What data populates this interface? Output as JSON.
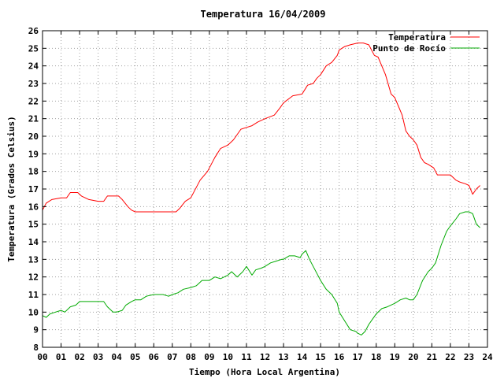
{
  "chart_data": {
    "type": "line",
    "title": "Temperatura 16/04/2009",
    "xlabel": "Tiempo (Hora Local Argentina)",
    "ylabel": "Temperatura (Grados Celsius)",
    "xlim": [
      0,
      24
    ],
    "ylim": [
      8,
      26
    ],
    "xticks": [
      "00",
      "01",
      "02",
      "03",
      "04",
      "05",
      "06",
      "07",
      "08",
      "09",
      "10",
      "11",
      "12",
      "13",
      "14",
      "15",
      "16",
      "17",
      "18",
      "19",
      "20",
      "21",
      "22",
      "23",
      "24"
    ],
    "yticks": [
      8,
      9,
      10,
      11,
      12,
      13,
      14,
      15,
      16,
      17,
      18,
      19,
      20,
      21,
      22,
      23,
      24,
      25,
      26
    ],
    "grid": true,
    "legend_position": "top-right",
    "series": [
      {
        "name": "Temperatura",
        "color": "#ff0000",
        "x": [
          0,
          0.2,
          0.5,
          1,
          1.3,
          1.5,
          1.9,
          2.1,
          2.5,
          3,
          3.3,
          3.5,
          4,
          4.1,
          4.3,
          4.6,
          4.8,
          5,
          5.5,
          6,
          6.5,
          7,
          7.2,
          7.4,
          7.7,
          8,
          8.5,
          8.9,
          9,
          9.3,
          9.6,
          10,
          10.3,
          10.7,
          11,
          11.3,
          11.6,
          12,
          12.5,
          12.8,
          13,
          13.5,
          14,
          14.3,
          14.6,
          14.8,
          15,
          15.3,
          15.6,
          15.9,
          16,
          16.3,
          16.6,
          17,
          17.3,
          17.6,
          17.9,
          18.1,
          18.3,
          18.5,
          18.8,
          19,
          19.2,
          19.4,
          19.6,
          19.8,
          20,
          20.2,
          20.4,
          20.6,
          20.8,
          21.1,
          21.3,
          21.5,
          21.7,
          22,
          22.3,
          22.5,
          22.8,
          23,
          23.2,
          23.4,
          23.6
        ],
        "values": [
          15.8,
          16.2,
          16.4,
          16.5,
          16.5,
          16.8,
          16.8,
          16.6,
          16.4,
          16.3,
          16.3,
          16.6,
          16.6,
          16.6,
          16.4,
          16.0,
          15.8,
          15.7,
          15.7,
          15.7,
          15.7,
          15.7,
          15.7,
          15.9,
          16.3,
          16.5,
          17.5,
          18.0,
          18.2,
          18.8,
          19.3,
          19.5,
          19.8,
          20.4,
          20.5,
          20.6,
          20.8,
          21.0,
          21.2,
          21.6,
          21.9,
          22.3,
          22.4,
          22.9,
          23.0,
          23.3,
          23.5,
          24.0,
          24.2,
          24.6,
          24.9,
          25.1,
          25.2,
          25.3,
          25.3,
          25.2,
          24.6,
          24.5,
          24.0,
          23.5,
          22.4,
          22.2,
          21.7,
          21.2,
          20.3,
          20.0,
          19.8,
          19.5,
          18.8,
          18.5,
          18.4,
          18.2,
          17.8,
          17.8,
          17.8,
          17.8,
          17.5,
          17.4,
          17.3,
          17.2,
          16.7,
          17.0,
          17.2
        ]
      },
      {
        "name": "Punto de Rocío",
        "color": "#00aa00",
        "x": [
          0,
          0.2,
          0.4,
          0.7,
          1,
          1.2,
          1.5,
          1.8,
          2,
          2.3,
          2.6,
          3,
          3.3,
          3.5,
          3.8,
          4,
          4.3,
          4.5,
          4.8,
          5,
          5.3,
          5.6,
          6,
          6.2,
          6.5,
          6.8,
          7,
          7.3,
          7.6,
          8,
          8.3,
          8.6,
          9,
          9.3,
          9.6,
          10,
          10.2,
          10.5,
          10.8,
          11,
          11.3,
          11.5,
          11.8,
          12,
          12.3,
          12.6,
          12.9,
          13,
          13.3,
          13.6,
          13.9,
          14,
          14.2,
          14.4,
          14.6,
          14.8,
          15,
          15.3,
          15.6,
          15.9,
          16,
          16.3,
          16.6,
          16.9,
          17,
          17.2,
          17.4,
          17.6,
          17.8,
          18,
          18.3,
          18.6,
          19,
          19.3,
          19.6,
          19.8,
          20,
          20.2,
          20.5,
          20.8,
          21,
          21.2,
          21.5,
          21.8,
          22,
          22.3,
          22.5,
          22.8,
          23,
          23.2,
          23.4,
          23.6
        ],
        "values": [
          9.8,
          9.7,
          9.9,
          10.0,
          10.1,
          10.0,
          10.3,
          10.4,
          10.6,
          10.6,
          10.6,
          10.6,
          10.6,
          10.3,
          10.0,
          10.0,
          10.1,
          10.4,
          10.6,
          10.7,
          10.7,
          10.9,
          11.0,
          11.0,
          11.0,
          10.9,
          11.0,
          11.1,
          11.3,
          11.4,
          11.5,
          11.8,
          11.8,
          12.0,
          11.9,
          12.1,
          12.3,
          12.0,
          12.3,
          12.6,
          12.1,
          12.4,
          12.5,
          12.6,
          12.8,
          12.9,
          13.0,
          13.0,
          13.2,
          13.2,
          13.1,
          13.3,
          13.5,
          13.0,
          12.6,
          12.2,
          11.8,
          11.3,
          11.0,
          10.5,
          10.0,
          9.5,
          9.0,
          8.9,
          8.8,
          8.7,
          8.9,
          9.3,
          9.6,
          9.9,
          10.2,
          10.3,
          10.5,
          10.7,
          10.8,
          10.7,
          10.7,
          11.0,
          11.8,
          12.3,
          12.5,
          12.8,
          13.8,
          14.6,
          14.9,
          15.3,
          15.6,
          15.7,
          15.7,
          15.6,
          15.0,
          14.8
        ]
      }
    ]
  }
}
